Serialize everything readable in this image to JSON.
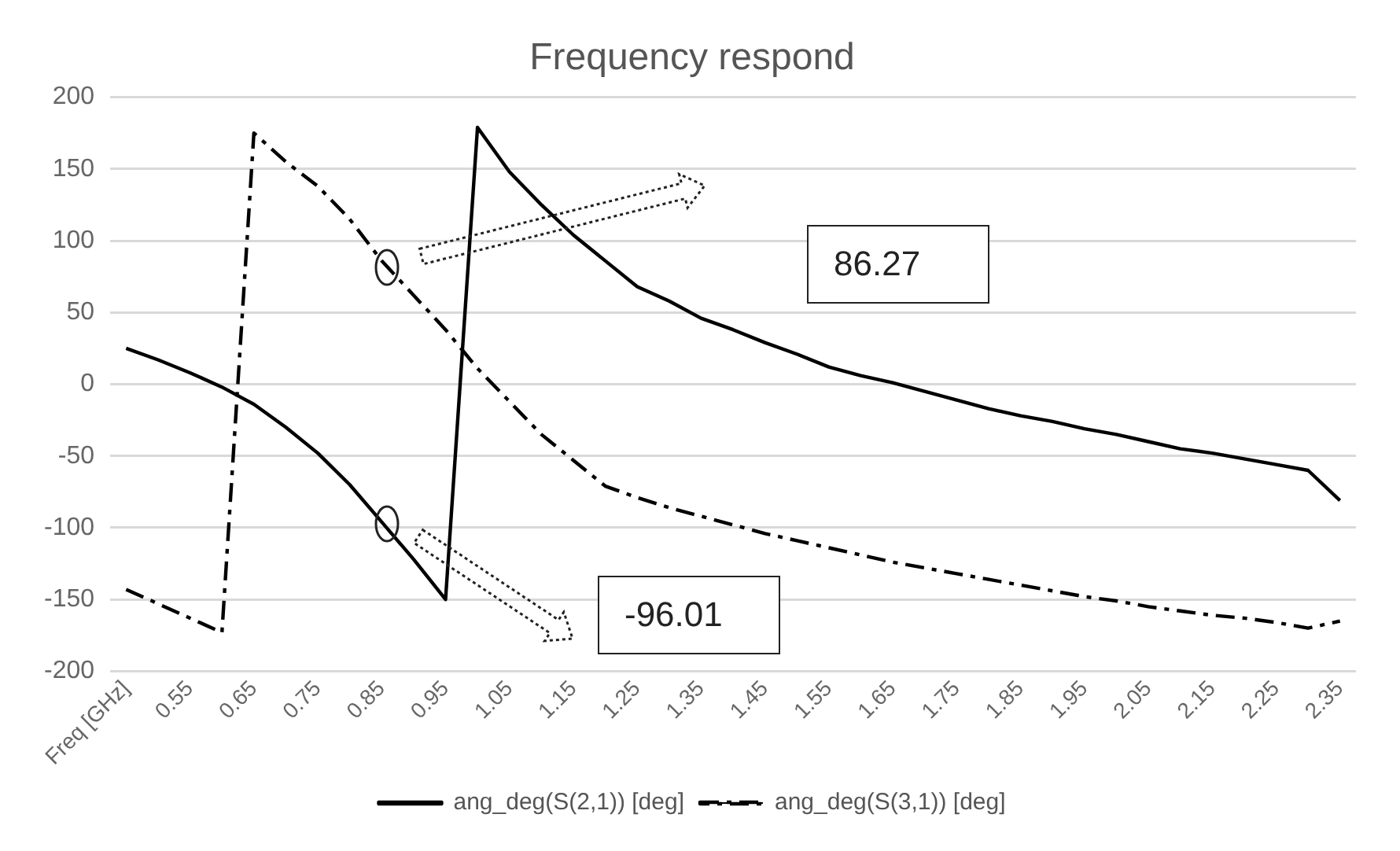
{
  "chart_data": {
    "type": "line",
    "title": "Frequency respond",
    "categories": [
      "Freq [GHz]",
      null,
      "0.55",
      null,
      "0.65",
      null,
      "0.75",
      null,
      "0.85",
      null,
      "0.95",
      null,
      "1.05",
      null,
      "1.15",
      null,
      "1.25",
      null,
      "1.35",
      null,
      "1.45",
      null,
      "1.55",
      null,
      "1.65",
      null,
      "1.75",
      null,
      "1.85",
      null,
      "1.95",
      null,
      "2.05",
      null,
      "2.15",
      null,
      "2.25",
      null,
      "2.35"
    ],
    "series": [
      {
        "name": "ang_deg(S(2,1)) [deg]",
        "color": "#000000",
        "line_style": "solid",
        "values": [
          25,
          17,
          8,
          -2,
          -14,
          -30,
          -48,
          -70,
          -96,
          -122,
          -150,
          179,
          148,
          125,
          104,
          86,
          68,
          58,
          46,
          38,
          29,
          21,
          12,
          6,
          1,
          -5,
          -11,
          -17,
          -22,
          -26,
          -31,
          -35,
          -40,
          -45,
          -48,
          -52,
          -56,
          -60,
          -81
        ]
      },
      {
        "name": "ang_deg(S(3,1)) [deg]",
        "color": "#000000",
        "line_style": "dashed",
        "values": [
          -143,
          -153,
          -163,
          -173,
          175,
          155,
          138,
          115,
          86,
          62,
          38,
          11,
          -12,
          -35,
          -53,
          -71,
          -79,
          -86,
          -92,
          -98,
          -104,
          -109,
          -114,
          -119,
          -124,
          -128,
          -132,
          -136,
          -140,
          -144,
          -148,
          -151,
          -155,
          -158,
          -161,
          -163,
          -166,
          -170,
          -165
        ]
      }
    ],
    "ylim": [
      -200,
      200
    ],
    "yticks": [
      -200,
      -150,
      -100,
      -50,
      0,
      50,
      100,
      150,
      200
    ],
    "grid": "y",
    "legend": "bottom",
    "marker": "none",
    "annotations": [
      "86.27",
      "-96.01"
    ]
  }
}
